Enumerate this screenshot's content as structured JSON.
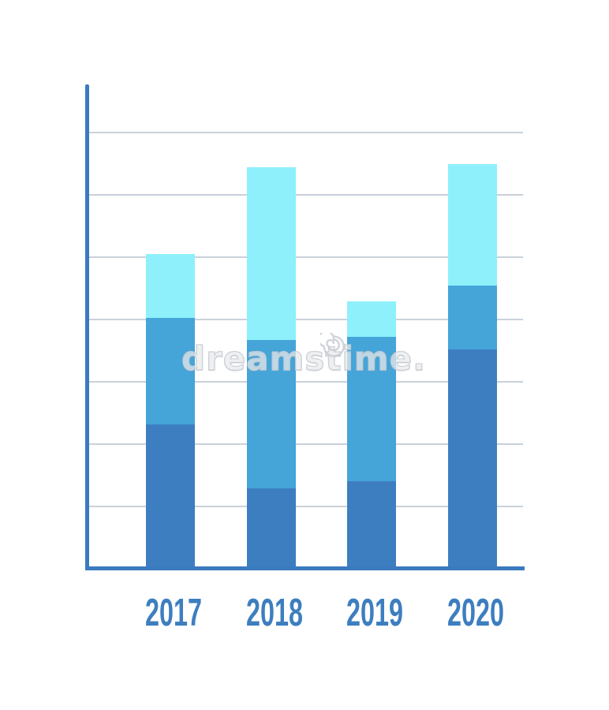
{
  "watermark": {
    "text": "dreamstime.",
    "logo_icon": "spiral-swirl"
  },
  "chart_data": {
    "type": "bar",
    "stacked": true,
    "title": "",
    "xlabel": "",
    "ylabel": "",
    "categories": [
      "2017",
      "2018",
      "2019",
      "2020"
    ],
    "series": [
      {
        "name": "bottom-segment",
        "color": "#3d7ec1",
        "values": [
          2.28,
          1.25,
          1.37,
          3.48
        ]
      },
      {
        "name": "middle-segment",
        "color": "#45a4d8",
        "values": [
          1.71,
          2.38,
          2.32,
          1.03
        ]
      },
      {
        "name": "top-segment",
        "color": "#8ef0fb",
        "values": [
          1.03,
          2.77,
          0.57,
          1.95
        ]
      }
    ],
    "totals": [
      5.02,
      6.4,
      4.26,
      6.46
    ],
    "ylim": [
      0,
      7.7
    ],
    "y_gridline_values": [
      1,
      2,
      3,
      4,
      5,
      6,
      7
    ],
    "grid": true,
    "legend": false,
    "tick_labels_shown": "x-only",
    "colors": {
      "axis": "#3a7abf",
      "gridline": "#c9d1db",
      "x_label": "#3d7ebf",
      "watermark_outline": "#c6cbd2"
    }
  }
}
